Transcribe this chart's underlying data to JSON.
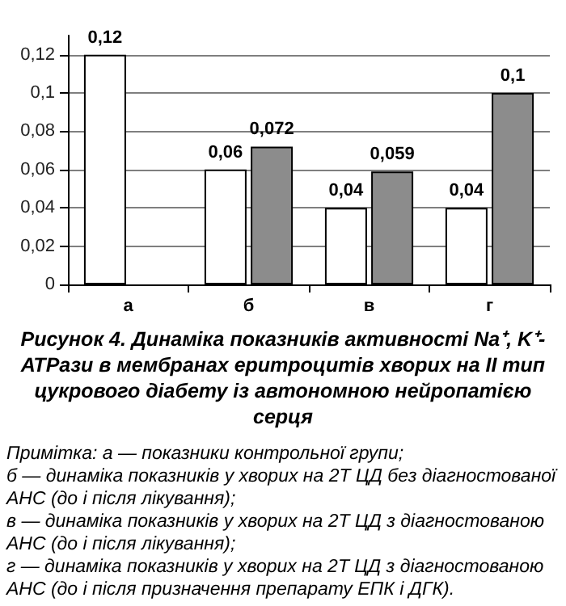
{
  "chart_data": {
    "type": "bar",
    "title": "Рисунок 4. Динаміка показників активності Na⁺, K⁺-АТРази в мембранах еритроцитів хворих на ІІ тип цукрового діабету із автономною нейропатією серця",
    "categories": [
      "а",
      "б",
      "в",
      "г"
    ],
    "series": [
      {
        "color": "#ffffff",
        "values": [
          0.12,
          0.06,
          0.04,
          0.04
        ],
        "value_labels": [
          "0,12",
          "0,06",
          "0,04",
          "0,04"
        ]
      },
      {
        "color": "#8c8c8c",
        "values": [
          null,
          0.072,
          0.059,
          0.1
        ],
        "value_labels": [
          null,
          "0,072",
          "0,059",
          "0,1"
        ]
      }
    ],
    "ylim": [
      0,
      0.13
    ],
    "yticks": [
      0,
      {
        "value": 0.02,
        "label": "0,02"
      },
      {
        "value": 0.04,
        "label": "0,04"
      },
      {
        "value": 0.06,
        "label": "0,06"
      },
      {
        "value": 0.08,
        "label": "0,08"
      },
      {
        "value": 0.1,
        "label": "0,1"
      },
      {
        "value": 0.12,
        "label": "0,12"
      }
    ],
    "grid": "y",
    "annotations": [
      "Примітка: а — показники контрольної групи;",
      "б — динаміка показників у хворих на 2Т ЦД без діагностованої АНС (до і після лікування);",
      "в — динаміка показників у хворих на 2Т ЦД з діагностованою АНС (до і після лікування);",
      "г — динаміка показників у хворих на 2Т ЦД з діагностованою АНС (до і після призначення препарату ЕПК і ДГК)."
    ]
  }
}
